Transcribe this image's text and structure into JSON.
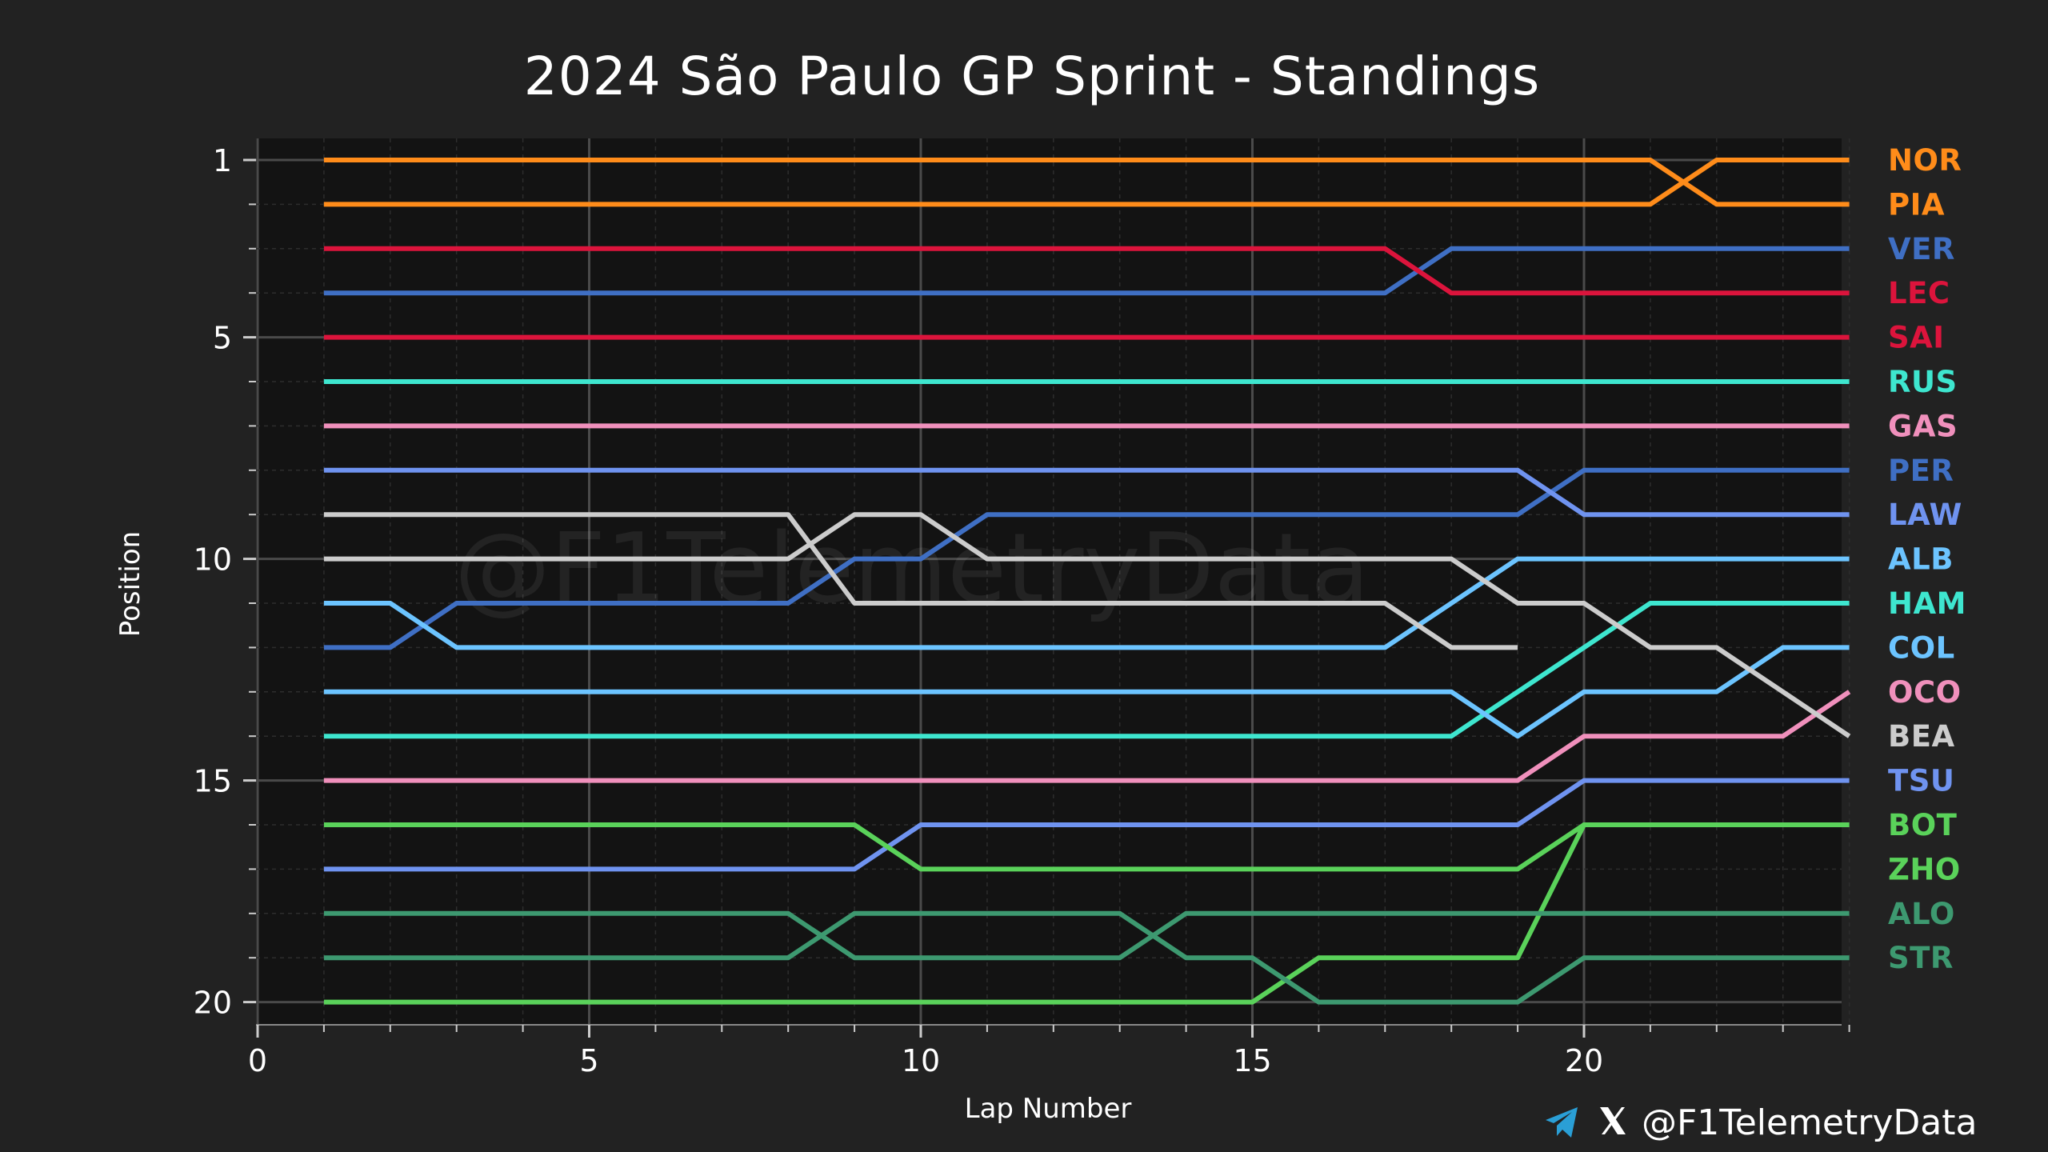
{
  "chart_data": {
    "type": "line",
    "title": "2024 São Paulo GP Sprint - Standings",
    "xlabel": "Lap Number",
    "ylabel": "Position",
    "xlim": [
      0,
      24
    ],
    "ylim": [
      20,
      1
    ],
    "xticks": [
      0,
      5,
      10,
      15,
      20
    ],
    "yticks": [
      1,
      5,
      10,
      15,
      20
    ],
    "grid": true,
    "legend": "right",
    "series": [
      {
        "name": "NOR",
        "color": "#ff8c1a",
        "laps": [
          1,
          21,
          22,
          24
        ],
        "positions": [
          1,
          1,
          2,
          2
        ]
      },
      {
        "name": "PIA",
        "color": "#ff8c1a",
        "laps": [
          1,
          21,
          22,
          24
        ],
        "positions": [
          2,
          2,
          1,
          1
        ]
      },
      {
        "name": "VER",
        "color": "#3f6fc4",
        "laps": [
          1,
          17,
          18,
          24
        ],
        "positions": [
          4,
          4,
          3,
          3
        ]
      },
      {
        "name": "LEC",
        "color": "#dc143c",
        "laps": [
          1,
          17,
          18,
          24
        ],
        "positions": [
          3,
          3,
          4,
          4
        ]
      },
      {
        "name": "SAI",
        "color": "#dc143c",
        "laps": [
          1,
          24
        ],
        "positions": [
          5,
          5
        ]
      },
      {
        "name": "RUS",
        "color": "#3ee6cf",
        "laps": [
          1,
          24
        ],
        "positions": [
          6,
          6
        ]
      },
      {
        "name": "GAS",
        "color": "#f090bc",
        "laps": [
          1,
          24
        ],
        "positions": [
          7,
          7
        ]
      },
      {
        "name": "PER",
        "color": "#3f6fc4",
        "laps": [
          1,
          2,
          3,
          8,
          9,
          10,
          11,
          19,
          20,
          24
        ],
        "positions": [
          12,
          12,
          11,
          11,
          10,
          10,
          9,
          9,
          8,
          8
        ]
      },
      {
        "name": "LAW",
        "color": "#6f93f0",
        "laps": [
          1,
          19,
          20,
          24
        ],
        "positions": [
          8,
          8,
          9,
          9
        ]
      },
      {
        "name": "ALB",
        "color": "#6cc4ff",
        "laps": [
          1,
          2,
          3,
          17,
          19,
          24
        ],
        "positions": [
          11,
          11,
          12,
          12,
          10,
          10
        ]
      },
      {
        "name": "HAM",
        "color": "#3ee6cf",
        "laps": [
          1,
          18,
          21,
          24
        ],
        "positions": [
          14,
          14,
          11,
          11
        ]
      },
      {
        "name": "COL",
        "color": "#6cc4ff",
        "laps": [
          1,
          18,
          19,
          20,
          22,
          23,
          24
        ],
        "positions": [
          13,
          13,
          14,
          13,
          13,
          12,
          12
        ]
      },
      {
        "name": "OCO",
        "color": "#f090bc",
        "laps": [
          1,
          19,
          20,
          23,
          24
        ],
        "positions": [
          15,
          15,
          14,
          14,
          13
        ]
      },
      {
        "name": "BEA",
        "color": "#cccccc",
        "laps": [
          1,
          8,
          9,
          10,
          11,
          18,
          19,
          20,
          21,
          22,
          24
        ],
        "positions": [
          10,
          10,
          9,
          9,
          10,
          10,
          11,
          11,
          12,
          12,
          14
        ]
      },
      {
        "name": "TSU",
        "color": "#6f93f0",
        "laps": [
          1,
          9,
          10,
          19,
          20,
          24
        ],
        "positions": [
          17,
          17,
          16,
          16,
          15,
          15
        ]
      },
      {
        "name": "BOT",
        "color": "#5ad25a",
        "laps": [
          1,
          15,
          16,
          19,
          20,
          24
        ],
        "positions": [
          20,
          20,
          19,
          19,
          16,
          16
        ]
      },
      {
        "name": "ZHO",
        "color": "#5ad25a",
        "laps": [
          1,
          9,
          10,
          19,
          20,
          24
        ],
        "positions": [
          16,
          16,
          17,
          17,
          16,
          16
        ]
      },
      {
        "name": "ALO",
        "color": "#3d9970",
        "laps": [
          1,
          8,
          9,
          13,
          14,
          24
        ],
        "positions": [
          18,
          18,
          19,
          19,
          18,
          18
        ]
      },
      {
        "name": "STR",
        "color": "#3d9970",
        "laps": [
          1,
          8,
          9,
          13,
          14,
          15,
          16,
          19,
          20,
          24
        ],
        "positions": [
          19,
          19,
          18,
          18,
          19,
          19,
          20,
          20,
          19,
          19
        ]
      },
      {
        "name": "",
        "color": "#cccccc",
        "laps": [
          1,
          8,
          9,
          17,
          18,
          19
        ],
        "positions": [
          9,
          9,
          11,
          11,
          12,
          12
        ]
      }
    ]
  },
  "legend": [
    {
      "code": "NOR",
      "color": "#ff8c1a"
    },
    {
      "code": "PIA",
      "color": "#ff8c1a"
    },
    {
      "code": "VER",
      "color": "#3f6fc4"
    },
    {
      "code": "LEC",
      "color": "#dc143c"
    },
    {
      "code": "SAI",
      "color": "#dc143c"
    },
    {
      "code": "RUS",
      "color": "#3ee6cf"
    },
    {
      "code": "GAS",
      "color": "#f090bc"
    },
    {
      "code": "PER",
      "color": "#3f6fc4"
    },
    {
      "code": "LAW",
      "color": "#6f93f0"
    },
    {
      "code": "ALB",
      "color": "#6cc4ff"
    },
    {
      "code": "HAM",
      "color": "#3ee6cf"
    },
    {
      "code": "COL",
      "color": "#6cc4ff"
    },
    {
      "code": "OCO",
      "color": "#f090bc"
    },
    {
      "code": "BEA",
      "color": "#cccccc"
    },
    {
      "code": "TSU",
      "color": "#6f93f0"
    },
    {
      "code": "BOT",
      "color": "#5ad25a"
    },
    {
      "code": "ZHO",
      "color": "#5ad25a"
    },
    {
      "code": "ALO",
      "color": "#3d9970"
    },
    {
      "code": "STR",
      "color": "#3d9970"
    }
  ],
  "watermark": "@F1TelemetryData",
  "footer": {
    "handle": "@F1TelemetryData",
    "icons": [
      "telegram-icon",
      "x-icon"
    ]
  }
}
